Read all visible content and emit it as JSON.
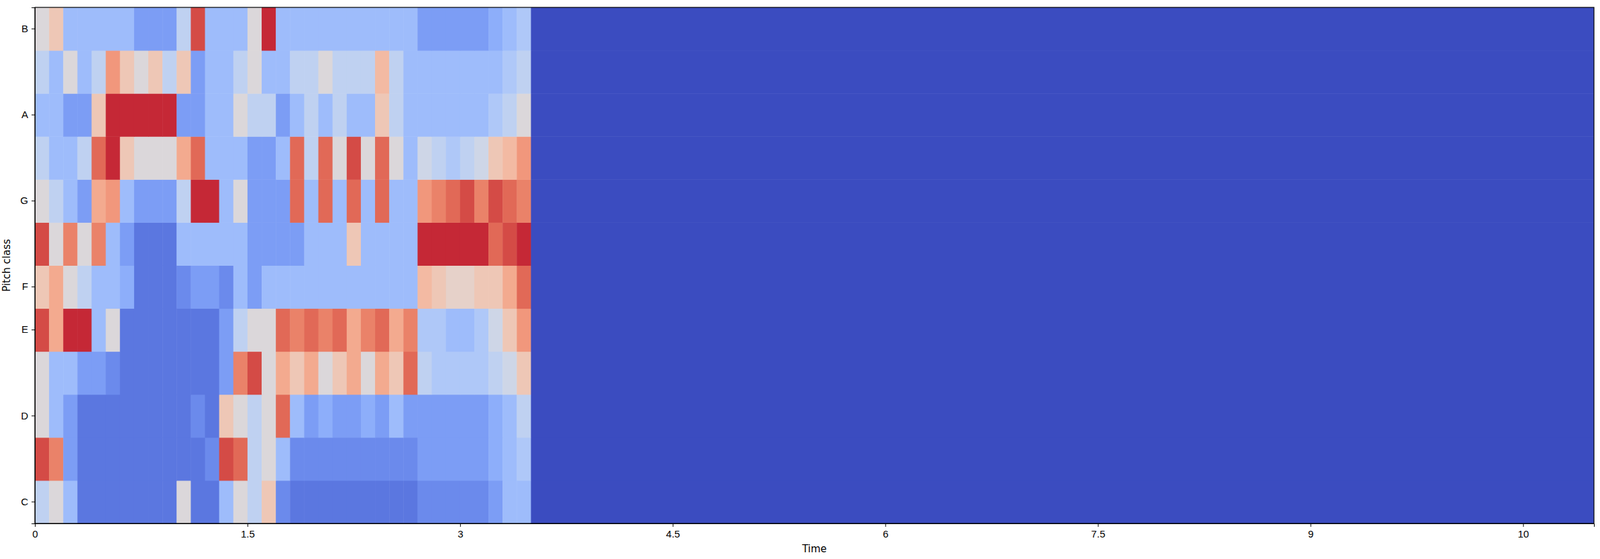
{
  "chart_data": {
    "type": "heatmap",
    "xlabel": "Time",
    "ylabel": "Pitch class",
    "categories": [
      "C",
      null,
      "D",
      null,
      "E",
      "F",
      null,
      "G",
      null,
      "A",
      null,
      "B"
    ],
    "x_bins": [
      0,
      0.1,
      0.2,
      0.3,
      0.4,
      0.5,
      0.6,
      0.7,
      0.8,
      0.9,
      1.0,
      1.1,
      1.2,
      1.3,
      1.4,
      1.5,
      1.6,
      1.7,
      1.8,
      1.9,
      2.0,
      2.1,
      2.2,
      2.3,
      2.4,
      2.5,
      2.6,
      2.7,
      2.8,
      2.9,
      3.0,
      3.1,
      3.2,
      3.3,
      3.4,
      3.5,
      11
    ],
    "xlim": [
      0,
      11
    ],
    "xticks": [
      0,
      1.5,
      3,
      4.5,
      6,
      7.5,
      9,
      {
        "value": 10.5,
        "label": "10"
      }
    ],
    "zlim": [
      0,
      1
    ],
    "cells": [
      [
        0.4,
        0.5,
        0.3,
        0.1,
        0.1,
        0.1,
        0.1,
        0.1,
        0.1,
        0.1,
        0.5,
        0.1,
        0.1,
        0.3,
        0.5,
        0.4,
        0.6,
        0.15,
        0.1,
        0.1,
        0.1,
        0.1,
        0.1,
        0.1,
        0.1,
        0.1,
        0.1,
        0.15,
        0.15,
        0.15,
        0.15,
        0.15,
        0.2,
        0.3,
        0.3,
        0
      ],
      [
        0.9,
        0.8,
        0.2,
        0.1,
        0.1,
        0.1,
        0.1,
        0.1,
        0.1,
        0.1,
        0.1,
        0.1,
        0.15,
        0.9,
        0.85,
        0.4,
        0.5,
        0.3,
        0.15,
        0.15,
        0.15,
        0.15,
        0.15,
        0.15,
        0.15,
        0.15,
        0.15,
        0.2,
        0.2,
        0.2,
        0.2,
        0.2,
        0.25,
        0.3,
        0.35,
        0
      ],
      [
        0.5,
        0.3,
        0.2,
        0.1,
        0.1,
        0.1,
        0.1,
        0.1,
        0.1,
        0.1,
        0.1,
        0.15,
        0.1,
        0.6,
        0.5,
        0.4,
        0.5,
        0.85,
        0.3,
        0.2,
        0.25,
        0.2,
        0.2,
        0.25,
        0.2,
        0.3,
        0.2,
        0.2,
        0.2,
        0.2,
        0.2,
        0.2,
        0.25,
        0.3,
        0.4,
        0
      ],
      [
        0.5,
        0.3,
        0.3,
        0.2,
        0.2,
        0.15,
        0.1,
        0.1,
        0.1,
        0.1,
        0.1,
        0.1,
        0.1,
        0.2,
        0.8,
        0.9,
        0.5,
        0.7,
        0.6,
        0.7,
        0.5,
        0.6,
        0.7,
        0.5,
        0.7,
        0.6,
        0.85,
        0.4,
        0.35,
        0.35,
        0.35,
        0.35,
        0.4,
        0.45,
        0.6,
        0
      ],
      [
        0.9,
        0.7,
        0.95,
        0.95,
        0.3,
        0.5,
        0.1,
        0.1,
        0.1,
        0.1,
        0.1,
        0.1,
        0.1,
        0.2,
        0.4,
        0.5,
        0.5,
        0.85,
        0.8,
        0.85,
        0.8,
        0.85,
        0.7,
        0.8,
        0.85,
        0.7,
        0.8,
        0.35,
        0.35,
        0.3,
        0.3,
        0.35,
        0.45,
        0.6,
        0.75,
        0
      ],
      [
        0.6,
        0.7,
        0.5,
        0.4,
        0.3,
        0.3,
        0.25,
        0.1,
        0.1,
        0.1,
        0.15,
        0.2,
        0.2,
        0.15,
        0.3,
        0.2,
        0.3,
        0.3,
        0.3,
        0.3,
        0.3,
        0.3,
        0.3,
        0.3,
        0.3,
        0.3,
        0.3,
        0.65,
        0.6,
        0.55,
        0.55,
        0.6,
        0.6,
        0.7,
        0.85,
        0
      ],
      [
        0.9,
        0.5,
        0.8,
        0.5,
        0.8,
        0.3,
        0.2,
        0.1,
        0.1,
        0.1,
        0.3,
        0.3,
        0.3,
        0.3,
        0.3,
        0.2,
        0.2,
        0.2,
        0.2,
        0.3,
        0.3,
        0.3,
        0.6,
        0.3,
        0.3,
        0.3,
        0.3,
        0.95,
        0.95,
        0.95,
        0.95,
        0.95,
        0.85,
        0.9,
        0.95,
        0
      ],
      [
        0.5,
        0.4,
        0.3,
        0.2,
        0.7,
        0.75,
        0.3,
        0.2,
        0.2,
        0.2,
        0.4,
        0.95,
        0.95,
        0.3,
        0.5,
        0.2,
        0.2,
        0.2,
        0.85,
        0.3,
        0.85,
        0.3,
        0.85,
        0.3,
        0.85,
        0.3,
        0.3,
        0.75,
        0.8,
        0.85,
        0.9,
        0.8,
        0.9,
        0.85,
        0.8,
        0
      ],
      [
        0.4,
        0.3,
        0.3,
        0.4,
        0.85,
        0.95,
        0.6,
        0.5,
        0.5,
        0.5,
        0.7,
        0.85,
        0.3,
        0.3,
        0.3,
        0.2,
        0.2,
        0.3,
        0.85,
        0.4,
        0.85,
        0.5,
        0.9,
        0.5,
        0.85,
        0.5,
        0.3,
        0.45,
        0.4,
        0.35,
        0.4,
        0.45,
        0.6,
        0.65,
        0.75,
        0
      ],
      [
        0.3,
        0.3,
        0.2,
        0.2,
        0.6,
        0.95,
        0.95,
        0.95,
        0.95,
        0.95,
        0.2,
        0.2,
        0.3,
        0.3,
        0.5,
        0.4,
        0.4,
        0.2,
        0.3,
        0.4,
        0.3,
        0.4,
        0.3,
        0.3,
        0.6,
        0.4,
        0.3,
        0.3,
        0.3,
        0.3,
        0.3,
        0.3,
        0.35,
        0.4,
        0.5,
        0
      ],
      [
        0.4,
        0.3,
        0.5,
        0.3,
        0.4,
        0.75,
        0.6,
        0.5,
        0.6,
        0.4,
        0.6,
        0.2,
        0.3,
        0.3,
        0.4,
        0.5,
        0.3,
        0.3,
        0.4,
        0.4,
        0.5,
        0.4,
        0.4,
        0.4,
        0.65,
        0.4,
        0.3,
        0.3,
        0.3,
        0.3,
        0.3,
        0.3,
        0.3,
        0.35,
        0.4,
        0
      ],
      [
        0.5,
        0.6,
        0.3,
        0.3,
        0.3,
        0.3,
        0.3,
        0.2,
        0.2,
        0.2,
        0.4,
        0.9,
        0.3,
        0.3,
        0.3,
        0.5,
        0.95,
        0.3,
        0.3,
        0.3,
        0.3,
        0.3,
        0.3,
        0.3,
        0.3,
        0.3,
        0.3,
        0.2,
        0.2,
        0.2,
        0.2,
        0.2,
        0.25,
        0.3,
        0.35,
        0
      ]
    ]
  }
}
